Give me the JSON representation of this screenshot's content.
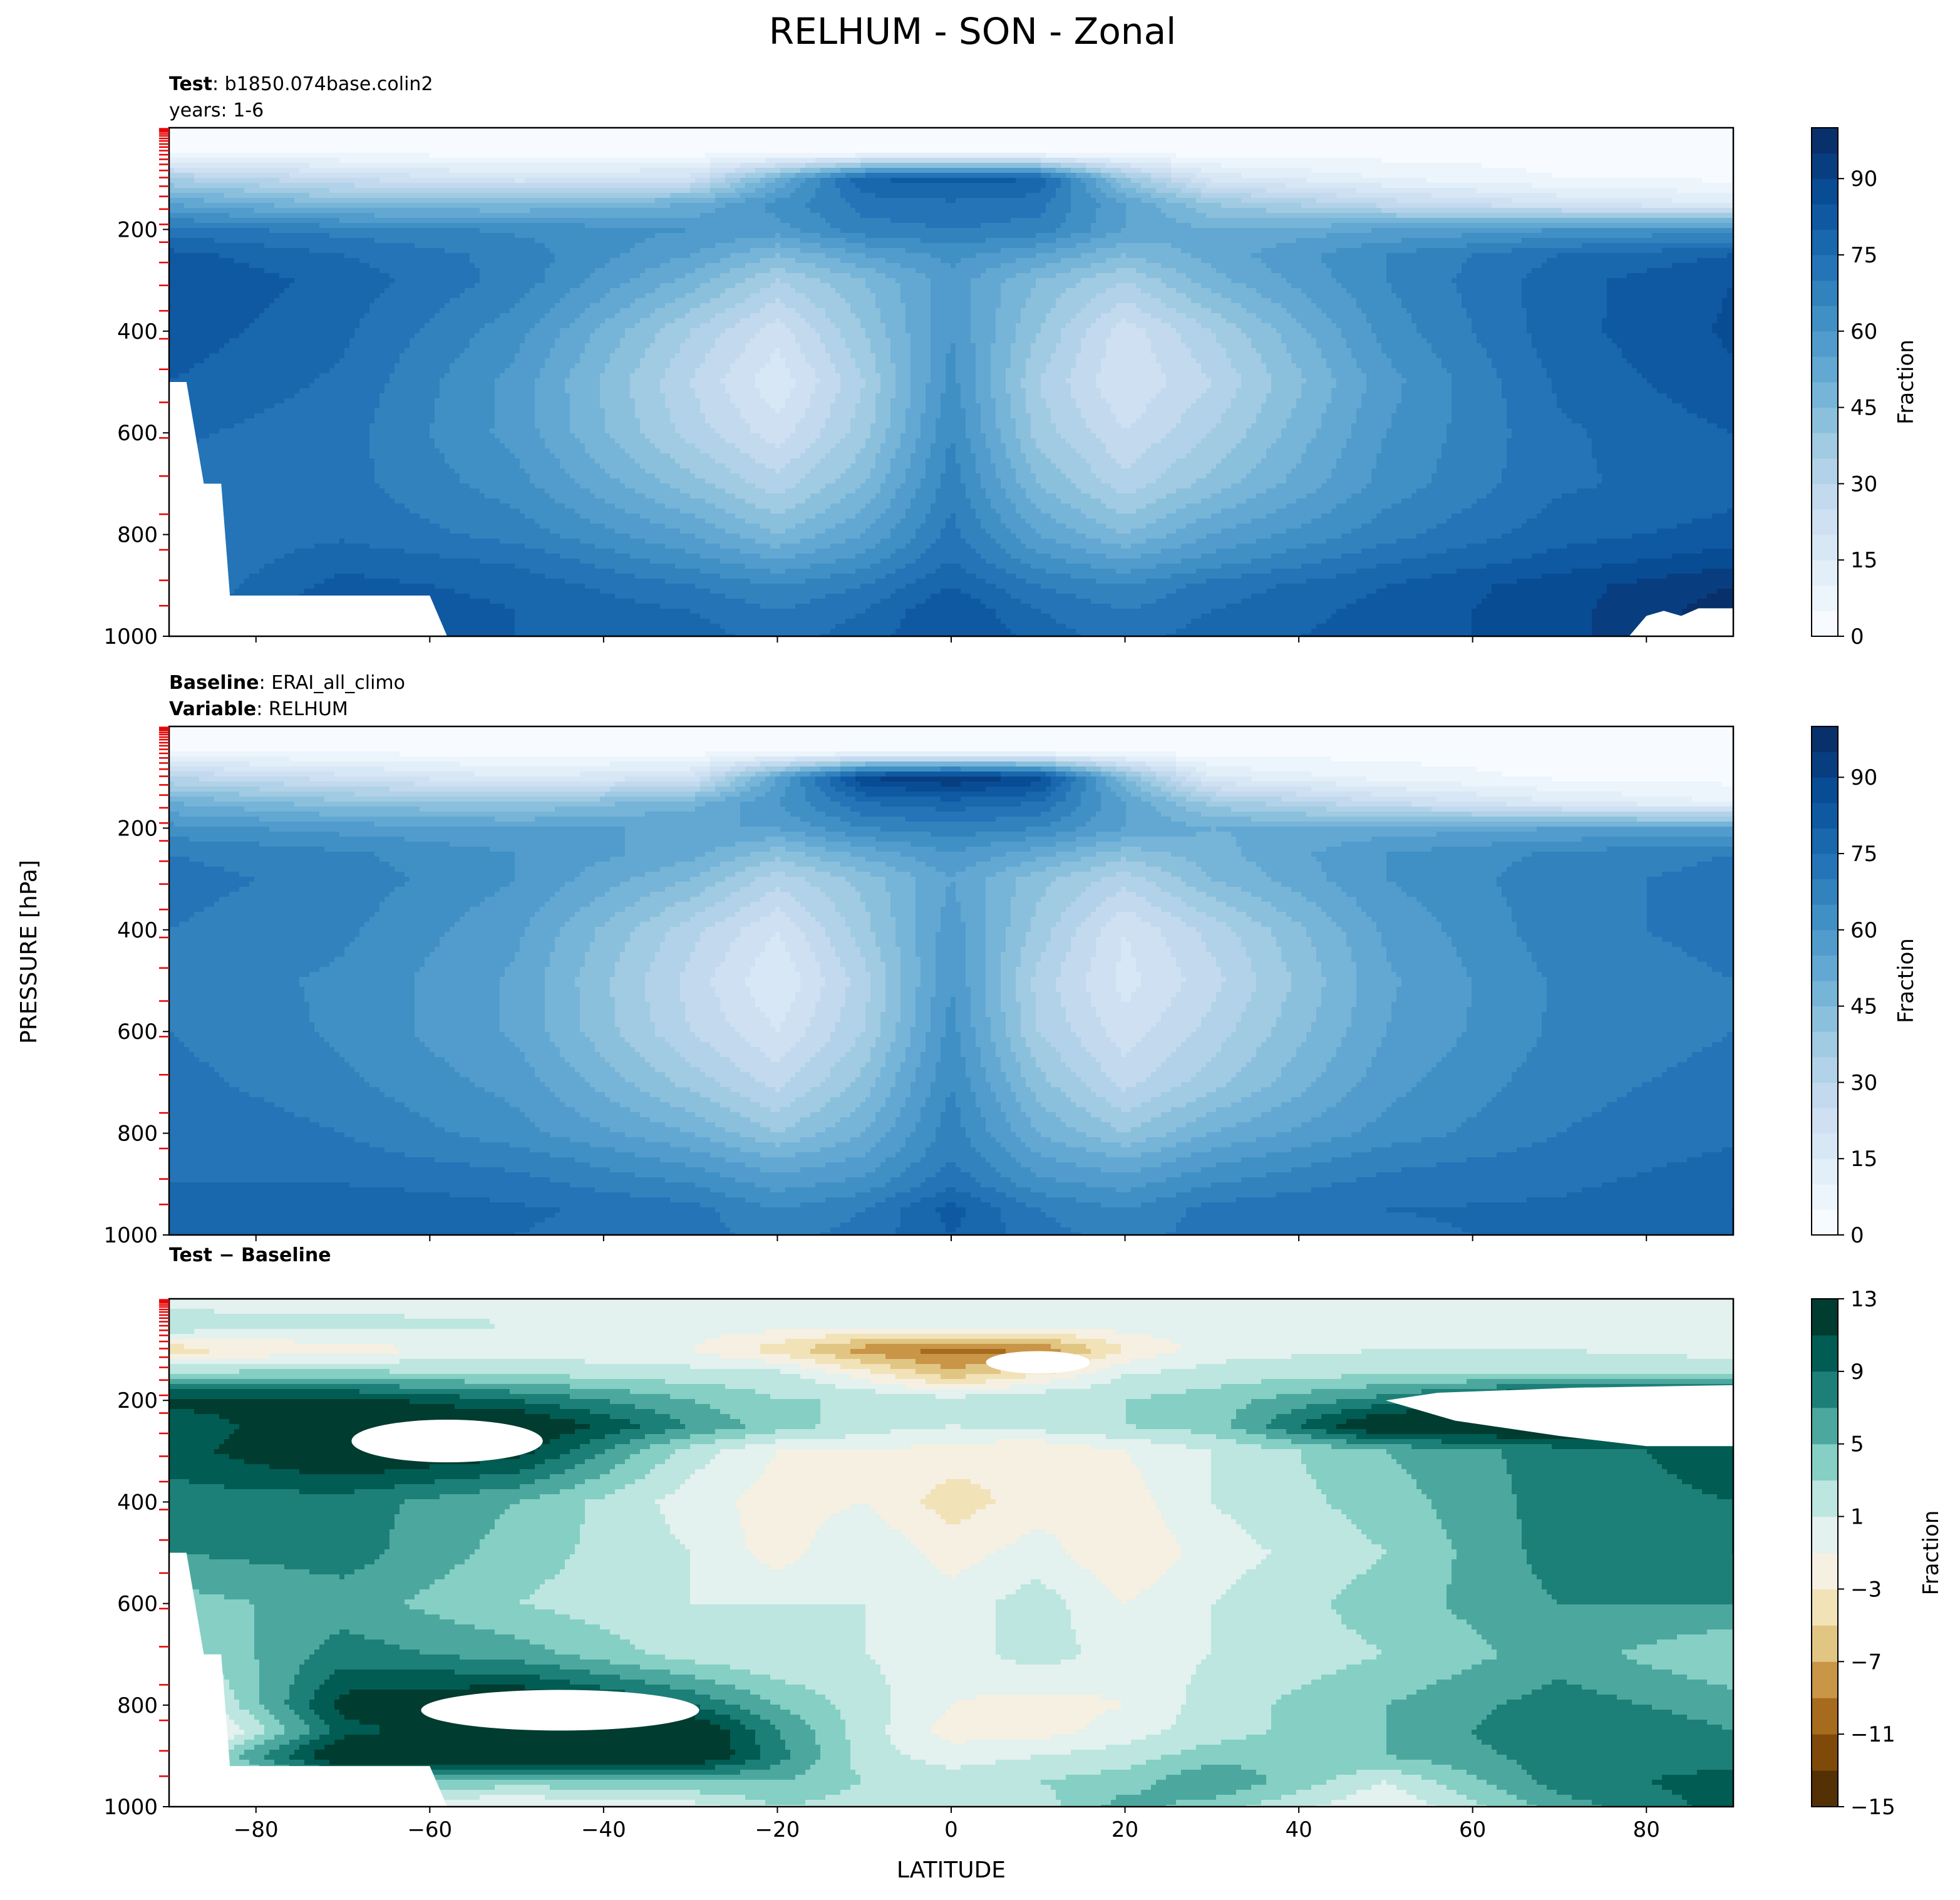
{
  "figure": {
    "title": "RELHUM - SON - Zonal",
    "ylabel": "PRESSURE [hPa]",
    "xlabel": "LATITUDE"
  },
  "chart_data": [
    {
      "type": "heatmap",
      "panel": "test",
      "header": [
        {
          "bold": "Test",
          "normal": ": b1850.074base.colin2"
        },
        {
          "bold": "",
          "normal": "years: 1-6"
        }
      ],
      "x": [
        -90,
        -70,
        -50,
        -30,
        -20,
        -10,
        0,
        10,
        20,
        30,
        50,
        70,
        90
      ],
      "y": [
        10,
        50,
        100,
        150,
        200,
        250,
        300,
        400,
        500,
        600,
        700,
        800,
        850,
        900,
        950,
        1000
      ],
      "z": [
        [
          2,
          2,
          2,
          2,
          2,
          2,
          2,
          2,
          2,
          2,
          2,
          2,
          2
        ],
        [
          5,
          4,
          3,
          3,
          3,
          4,
          4,
          4,
          3,
          3,
          3,
          3,
          3
        ],
        [
          35,
          25,
          18,
          22,
          50,
          80,
          82,
          80,
          40,
          18,
          10,
          5,
          4
        ],
        [
          55,
          45,
          45,
          50,
          62,
          72,
          74,
          72,
          55,
          40,
          28,
          20,
          15
        ],
        [
          72,
          68,
          64,
          60,
          58,
          68,
          70,
          68,
          55,
          50,
          55,
          60,
          62
        ],
        [
          82,
          75,
          68,
          55,
          45,
          55,
          62,
          55,
          45,
          52,
          65,
          75,
          80
        ],
        [
          85,
          78,
          68,
          48,
          35,
          45,
          58,
          45,
          35,
          48,
          65,
          78,
          85
        ],
        [
          83,
          76,
          62,
          35,
          22,
          40,
          60,
          40,
          22,
          35,
          62,
          78,
          86
        ],
        [
          80,
          74,
          58,
          30,
          16,
          35,
          62,
          35,
          20,
          30,
          58,
          76,
          84
        ],
        [
          76,
          72,
          58,
          33,
          22,
          38,
          65,
          38,
          25,
          35,
          60,
          74,
          80
        ],
        [
          74,
          72,
          62,
          42,
          32,
          45,
          68,
          45,
          32,
          42,
          62,
          74,
          78
        ],
        [
          72,
          74,
          68,
          55,
          45,
          55,
          72,
          55,
          45,
          55,
          68,
          78,
          82
        ],
        [
          70,
          78,
          74,
          62,
          55,
          62,
          75,
          62,
          55,
          62,
          74,
          82,
          88
        ],
        [
          70,
          82,
          78,
          70,
          65,
          70,
          80,
          70,
          65,
          72,
          80,
          88,
          95
        ],
        [
          72,
          85,
          80,
          75,
          70,
          75,
          85,
          75,
          70,
          75,
          82,
          88,
          98
        ],
        [
          72,
          82,
          80,
          78,
          72,
          78,
          85,
          78,
          72,
          78,
          82,
          88,
          98
        ]
      ],
      "missing": [
        {
          "kind": "polygon",
          "pts": [
            [
              -90,
              500
            ],
            [
              -88,
              500
            ],
            [
              -86,
              700
            ],
            [
              -84,
              700
            ],
            [
              -83,
              920
            ],
            [
              -60,
              920
            ],
            [
              -58,
              1000
            ],
            [
              -90,
              1000
            ]
          ]
        },
        {
          "kind": "polygon",
          "pts": [
            [
              78,
              1000
            ],
            [
              80,
              960
            ],
            [
              82,
              950
            ],
            [
              84,
              960
            ],
            [
              86,
              945
            ],
            [
              90,
              945
            ],
            [
              90,
              1000
            ]
          ]
        }
      ],
      "colorbar": {
        "label": "Fraction",
        "levels": [
          0,
          5,
          10,
          15,
          20,
          25,
          30,
          35,
          40,
          45,
          50,
          55,
          60,
          65,
          70,
          75,
          80,
          85,
          90,
          95,
          100
        ],
        "tick_labels": [
          "0",
          "15",
          "30",
          "45",
          "60",
          "75",
          "90"
        ]
      },
      "colormap": "Blues",
      "xlim": [
        -90,
        90
      ],
      "ylim": [
        1000,
        0
      ],
      "yticks": [
        "200",
        "400",
        "600",
        "800",
        "1000"
      ]
    },
    {
      "type": "heatmap",
      "panel": "baseline",
      "header": [
        {
          "bold": "Baseline",
          "normal": ": ERAI_all_climo"
        },
        {
          "bold": "Variable",
          "normal": ": RELHUM"
        }
      ],
      "x": [
        -90,
        -70,
        -50,
        -30,
        -20,
        -10,
        0,
        10,
        20,
        30,
        50,
        70,
        90
      ],
      "y": [
        10,
        50,
        100,
        150,
        200,
        250,
        300,
        400,
        500,
        600,
        700,
        800,
        850,
        900,
        950,
        1000
      ],
      "z": [
        [
          2,
          2,
          2,
          2,
          2,
          2,
          2,
          2,
          2,
          2,
          2,
          2,
          2
        ],
        [
          5,
          4,
          3,
          3,
          3,
          4,
          4,
          4,
          3,
          3,
          3,
          3,
          3
        ],
        [
          30,
          22,
          15,
          20,
          55,
          90,
          95,
          88,
          45,
          15,
          8,
          4,
          3
        ],
        [
          50,
          42,
          40,
          48,
          60,
          75,
          78,
          75,
          55,
          38,
          25,
          15,
          10
        ],
        [
          62,
          58,
          55,
          55,
          55,
          65,
          68,
          65,
          55,
          50,
          52,
          55,
          55
        ],
        [
          70,
          66,
          60,
          52,
          42,
          52,
          60,
          52,
          42,
          48,
          60,
          66,
          70
        ],
        [
          72,
          68,
          60,
          45,
          32,
          42,
          55,
          42,
          32,
          45,
          60,
          68,
          72
        ],
        [
          70,
          66,
          56,
          32,
          20,
          38,
          58,
          38,
          20,
          32,
          56,
          68,
          72
        ],
        [
          68,
          64,
          54,
          28,
          15,
          33,
          60,
          33,
          18,
          28,
          54,
          66,
          70
        ],
        [
          70,
          64,
          54,
          30,
          20,
          35,
          62,
          35,
          22,
          32,
          55,
          66,
          70
        ],
        [
          72,
          66,
          58,
          38,
          28,
          42,
          65,
          42,
          28,
          38,
          58,
          68,
          72
        ],
        [
          75,
          70,
          62,
          50,
          40,
          50,
          68,
          50,
          40,
          50,
          62,
          70,
          74
        ],
        [
          75,
          72,
          68,
          58,
          50,
          56,
          70,
          56,
          50,
          58,
          68,
          72,
          76
        ],
        [
          75,
          75,
          72,
          65,
          58,
          62,
          74,
          62,
          58,
          65,
          72,
          74,
          78
        ],
        [
          75,
          80,
          76,
          72,
          65,
          70,
          82,
          70,
          65,
          72,
          75,
          76,
          80
        ],
        [
          75,
          78,
          75,
          72,
          68,
          72,
          80,
          72,
          68,
          72,
          74,
          76,
          80
        ]
      ],
      "missing": [],
      "colorbar": {
        "label": "Fraction",
        "levels": [
          0,
          5,
          10,
          15,
          20,
          25,
          30,
          35,
          40,
          45,
          50,
          55,
          60,
          65,
          70,
          75,
          80,
          85,
          90,
          95,
          100
        ],
        "tick_labels": [
          "0",
          "15",
          "30",
          "45",
          "60",
          "75",
          "90"
        ]
      },
      "colormap": "Blues",
      "xlim": [
        -90,
        90
      ],
      "ylim": [
        1000,
        0
      ],
      "yticks": [
        "200",
        "400",
        "600",
        "800",
        "1000"
      ]
    },
    {
      "type": "heatmap",
      "panel": "difference",
      "header": [
        {
          "bold": "Test − Baseline",
          "normal": ""
        }
      ],
      "x": [
        -90,
        -70,
        -50,
        -30,
        -20,
        -10,
        0,
        10,
        20,
        30,
        50,
        70,
        90
      ],
      "y": [
        10,
        50,
        100,
        150,
        200,
        250,
        300,
        400,
        500,
        600,
        700,
        800,
        850,
        900,
        950,
        1000
      ],
      "z": [
        [
          0,
          0,
          0,
          0,
          0,
          0,
          0,
          0,
          0,
          0,
          0,
          0,
          0
        ],
        [
          3,
          2,
          1,
          0,
          0,
          0,
          0,
          0,
          0,
          0,
          0,
          0,
          -1
        ],
        [
          -4,
          -2,
          0,
          -1,
          -4,
          -8,
          -10,
          -9,
          -3,
          0,
          1,
          1,
          0
        ],
        [
          4,
          4,
          3,
          2,
          2,
          -2,
          -6,
          -3,
          1,
          2,
          3,
          3,
          3
        ],
        [
          12,
          12,
          9,
          5,
          3,
          3,
          2,
          3,
          3,
          4,
          8,
          14,
          14
        ],
        [
          9,
          14,
          14,
          7,
          4,
          2,
          1,
          2,
          3,
          4,
          14,
          14,
          14
        ],
        [
          10,
          14,
          12,
          2,
          -1,
          -1,
          -2,
          -3,
          -1,
          1,
          5,
          8,
          10
        ],
        [
          8,
          8,
          5,
          0,
          -2,
          -1,
          -4,
          -2,
          -2,
          1,
          4,
          8,
          9
        ],
        [
          7,
          8,
          4,
          1,
          -2,
          1,
          -2,
          0,
          -3,
          0,
          3,
          8,
          9
        ],
        [
          4,
          6,
          3,
          1,
          1,
          1,
          0,
          2,
          -1,
          1,
          4,
          7,
          7
        ],
        [
          2,
          8,
          6,
          2,
          1,
          1,
          0,
          2,
          0,
          1,
          3,
          6,
          3
        ],
        [
          -3,
          12,
          14,
          9,
          5,
          2,
          -1,
          -2,
          -1,
          2,
          5,
          8,
          6
        ],
        [
          -6,
          10,
          14,
          14,
          7,
          2,
          -2,
          -2,
          0,
          2,
          5,
          9,
          7
        ],
        [
          -1,
          14,
          14,
          14,
          8,
          2,
          0,
          1,
          2,
          4,
          5,
          8,
          8
        ],
        [
          0,
          6,
          4,
          5,
          5,
          3,
          2,
          3,
          4,
          7,
          1,
          8,
          10
        ],
        [
          0,
          -1,
          -1,
          0,
          3,
          2,
          1,
          2,
          6,
          4,
          -1,
          6,
          10
        ]
      ],
      "missing": [
        {
          "kind": "polygon",
          "pts": [
            [
              -90,
              500
            ],
            [
              -88,
              500
            ],
            [
              -86,
              700
            ],
            [
              -84,
              700
            ],
            [
              -83,
              920
            ],
            [
              -60,
              920
            ],
            [
              -58,
              1000
            ],
            [
              -90,
              1000
            ]
          ]
        },
        {
          "kind": "ellipse",
          "cx": -58,
          "cy": 280,
          "rx": 11,
          "ry": 42
        },
        {
          "kind": "ellipse",
          "cx": -45,
          "cy": 810,
          "rx": 16,
          "ry": 40
        },
        {
          "kind": "ellipse",
          "cx": 10,
          "cy": 125,
          "rx": 6,
          "ry": 22
        },
        {
          "kind": "polygon",
          "pts": [
            [
              50,
              200
            ],
            [
              56,
              185
            ],
            [
              72,
              175
            ],
            [
              90,
              170
            ],
            [
              90,
              290
            ],
            [
              80,
              290
            ],
            [
              70,
              270
            ],
            [
              58,
              240
            ]
          ]
        }
      ],
      "colorbar": {
        "label": "Fraction",
        "levels": [
          -15,
          -13,
          -11,
          -9,
          -7,
          -5,
          -3,
          -1,
          1,
          3,
          5,
          7,
          9,
          11,
          13
        ],
        "tick_labels": [
          "−15",
          "−11",
          "−7",
          "−3",
          "1",
          "5",
          "9",
          "13"
        ]
      },
      "colormap": "BrBG",
      "xlim": [
        -90,
        90
      ],
      "ylim": [
        1000,
        0
      ],
      "yticks": [
        "200",
        "400",
        "600",
        "800",
        "1000"
      ],
      "xticks": [
        "−80",
        "−60",
        "−40",
        "−20",
        "0",
        "20",
        "40",
        "60",
        "80"
      ]
    }
  ]
}
